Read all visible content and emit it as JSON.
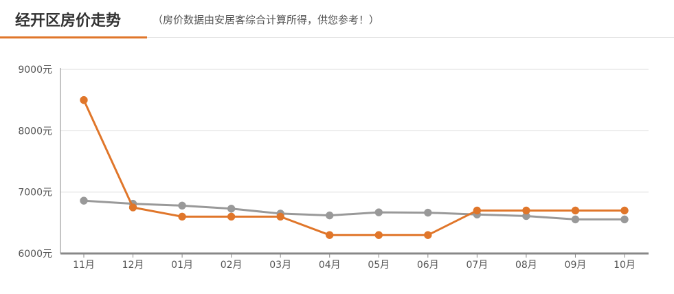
{
  "header": {
    "title": "经开区房价走势",
    "subtitle": "（房价数据由安居客综合计算所得，供您参考！）",
    "accent_color": "#e0762a"
  },
  "chart_data": {
    "type": "line",
    "title": "经开区房价走势",
    "subtitle": "（房价数据由安居客综合计算所得，供您参考！）",
    "categories": [
      "11月",
      "12月",
      "01月",
      "02月",
      "03月",
      "04月",
      "05月",
      "06月",
      "07月",
      "08月",
      "09月",
      "10月"
    ],
    "y_ticks": [
      "6000元",
      "7000元",
      "8000元",
      "9000元"
    ],
    "ylim": [
      6000,
      9000
    ],
    "grid": true,
    "legend": "none",
    "series": [
      {
        "color": "#e0762a",
        "values": [
          8500,
          6750,
          6600,
          6600,
          6600,
          6300,
          6300,
          6300,
          6700,
          6700,
          6700,
          6700
        ]
      },
      {
        "color": "#999999",
        "values": [
          6860,
          6810,
          6780,
          6730,
          6650,
          6620,
          6670,
          6665,
          6635,
          6610,
          6555,
          6555
        ]
      }
    ]
  }
}
